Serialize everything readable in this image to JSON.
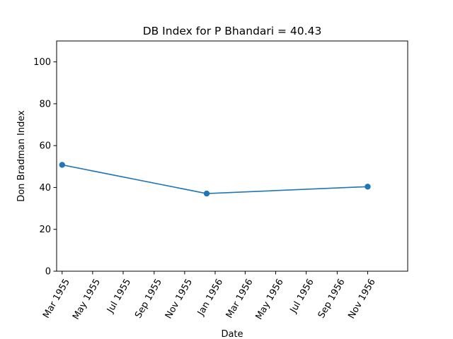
{
  "chart_data": {
    "type": "line",
    "title": "DB Index for P Bhandari = 40.43",
    "xlabel": "Date",
    "ylabel": "Don Bradman Index",
    "ylim": [
      0,
      110
    ],
    "yticks": [
      0,
      20,
      40,
      60,
      80,
      100
    ],
    "xlim": [
      "1955-02-18",
      "1957-01-20"
    ],
    "xticks": [
      {
        "date": "1955-03-01",
        "label": "Mar 1955"
      },
      {
        "date": "1955-05-01",
        "label": "May 1955"
      },
      {
        "date": "1955-07-01",
        "label": "Jul 1955"
      },
      {
        "date": "1955-09-01",
        "label": "Sep 1955"
      },
      {
        "date": "1955-11-01",
        "label": "Nov 1955"
      },
      {
        "date": "1956-01-01",
        "label": "Jan 1956"
      },
      {
        "date": "1956-03-01",
        "label": "Mar 1956"
      },
      {
        "date": "1956-05-01",
        "label": "May 1956"
      },
      {
        "date": "1956-07-01",
        "label": "Jul 1956"
      },
      {
        "date": "1956-09-01",
        "label": "Sep 1956"
      },
      {
        "date": "1956-11-01",
        "label": "Nov 1956"
      }
    ],
    "series": [
      {
        "color": "#1f77b4",
        "x": [
          "1955-03-01",
          "1955-12-15",
          "1956-11-01"
        ],
        "y": [
          50.8,
          37.1,
          40.4
        ]
      }
    ],
    "grid": false,
    "legend": "none"
  }
}
